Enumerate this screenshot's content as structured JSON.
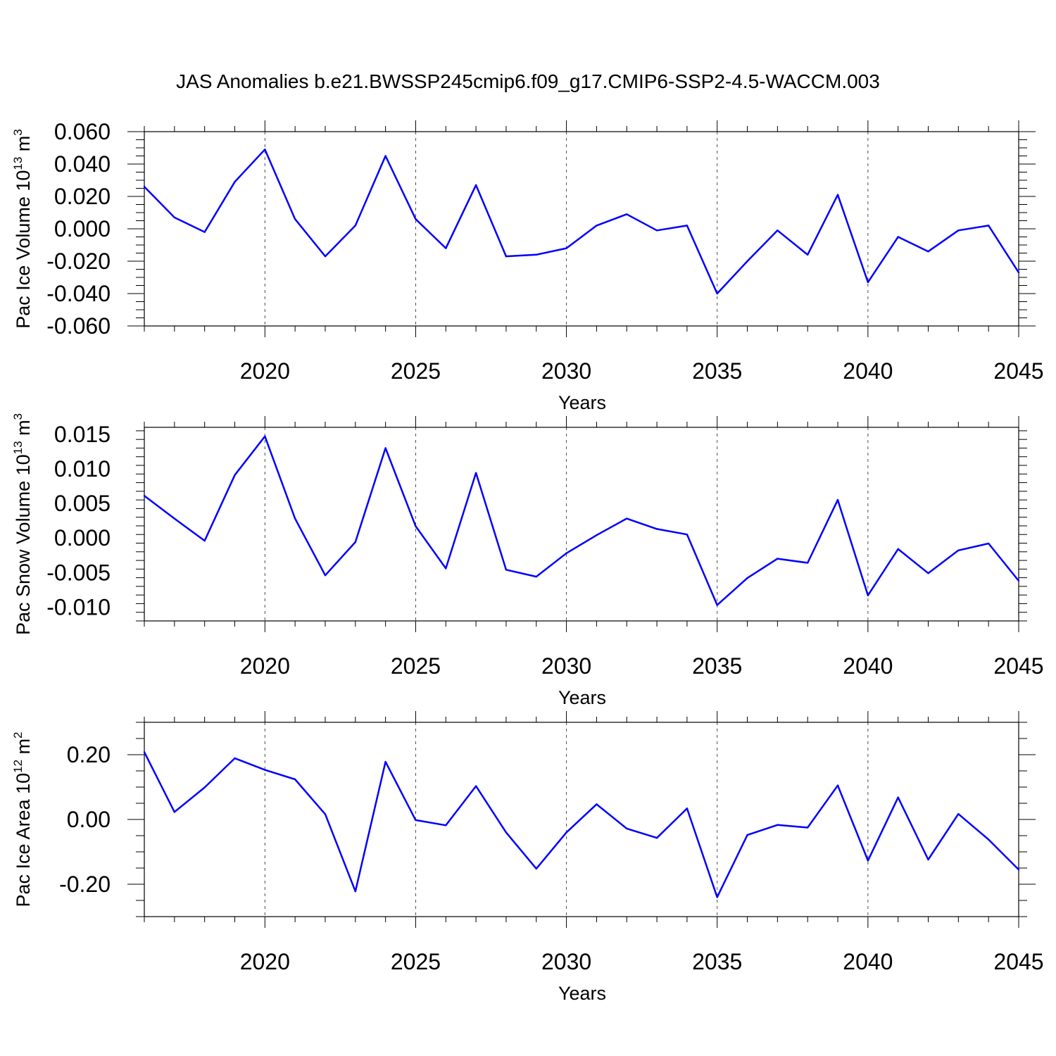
{
  "chart_title": "JAS Anomalies b.e21.BWSSP245cmip6.f09_g17.CMIP6-SSP2-4.5-WACCM.003",
  "colors": {
    "line": "#0000ff",
    "axis": "#000000",
    "grid": "#000000"
  },
  "chart_data": [
    {
      "type": "line",
      "ylabel": {
        "text": "Pac Ice Volume 10",
        "sup": "13",
        "unit": " m",
        "unit_sup": "3"
      },
      "xlabel": "Years",
      "xlim": [
        2016,
        2045
      ],
      "ylim": [
        -0.06,
        0.06
      ],
      "yticks": [
        -0.06,
        -0.04,
        -0.02,
        0.0,
        0.02,
        0.04,
        0.06
      ],
      "ytick_labels": [
        "-0.060",
        "-0.040",
        "-0.020",
        "0.000",
        "0.020",
        "0.040",
        "0.060"
      ],
      "xticks": [
        2020,
        2025,
        2030,
        2035,
        2040,
        2045
      ],
      "xtick_labels": [
        "2020",
        "2025",
        "2030",
        "2035",
        "2040",
        "2045"
      ],
      "grid": "vertical dashed at labeled years",
      "x": [
        2016,
        2017,
        2018,
        2019,
        2020,
        2021,
        2022,
        2023,
        2024,
        2025,
        2026,
        2027,
        2028,
        2029,
        2030,
        2031,
        2032,
        2033,
        2034,
        2035,
        2036,
        2037,
        2038,
        2039,
        2040,
        2041,
        2042,
        2043,
        2044,
        2045
      ],
      "values": [
        0.026,
        0.007,
        -0.002,
        0.029,
        0.049,
        0.006,
        -0.017,
        0.002,
        0.045,
        0.006,
        -0.012,
        0.027,
        -0.017,
        -0.016,
        -0.012,
        0.002,
        0.009,
        -0.001,
        0.002,
        -0.04,
        -0.02,
        -0.001,
        -0.016,
        0.021,
        -0.033,
        -0.005,
        -0.014,
        -0.001,
        0.002,
        -0.027
      ]
    },
    {
      "type": "line",
      "ylabel": {
        "text": "Pac Snow Volume 10",
        "sup": "13",
        "unit": " m",
        "unit_sup": "3"
      },
      "xlabel": "Years",
      "xlim": [
        2016,
        2045
      ],
      "ylim": [
        -0.012,
        0.016
      ],
      "yticks": [
        -0.01,
        -0.005,
        0.0,
        0.005,
        0.01,
        0.015
      ],
      "ytick_labels": [
        "-0.010",
        "-0.005",
        "0.000",
        "0.005",
        "0.010",
        "0.015"
      ],
      "xticks": [
        2020,
        2025,
        2030,
        2035,
        2040,
        2045
      ],
      "xtick_labels": [
        "2020",
        "2025",
        "2030",
        "2035",
        "2040",
        "2045"
      ],
      "grid": "vertical dashed at labeled years",
      "x": [
        2016,
        2017,
        2018,
        2019,
        2020,
        2021,
        2022,
        2023,
        2024,
        2025,
        2026,
        2027,
        2028,
        2029,
        2030,
        2031,
        2032,
        2033,
        2034,
        2035,
        2036,
        2037,
        2038,
        2039,
        2040,
        2041,
        2042,
        2043,
        2044,
        2045
      ],
      "values": [
        0.0061,
        0.0028,
        -0.0004,
        0.0091,
        0.0147,
        0.0028,
        -0.0054,
        -0.0006,
        0.013,
        0.0017,
        -0.0044,
        0.0094,
        -0.0046,
        -0.0056,
        -0.0022,
        0.0004,
        0.0028,
        0.0013,
        0.0005,
        -0.0097,
        -0.0058,
        -0.003,
        -0.0036,
        0.0055,
        -0.0083,
        -0.0016,
        -0.0051,
        -0.0018,
        -0.0008,
        -0.0062
      ]
    },
    {
      "type": "line",
      "ylabel": {
        "text": "Pac Ice Area 10",
        "sup": "12",
        "unit": " m",
        "unit_sup": "2"
      },
      "xlabel": "Years",
      "xlim": [
        2016,
        2045
      ],
      "ylim": [
        -0.3,
        0.3
      ],
      "yticks": [
        -0.2,
        0.0,
        0.2
      ],
      "ytick_labels": [
        "-0.20",
        "0.00",
        "0.20"
      ],
      "xticks": [
        2020,
        2025,
        2030,
        2035,
        2040,
        2045
      ],
      "xtick_labels": [
        "2020",
        "2025",
        "2030",
        "2035",
        "2040",
        "2045"
      ],
      "grid": "vertical dashed at labeled years",
      "x": [
        2016,
        2017,
        2018,
        2019,
        2020,
        2021,
        2022,
        2023,
        2024,
        2025,
        2026,
        2027,
        2028,
        2029,
        2030,
        2031,
        2032,
        2033,
        2034,
        2035,
        2036,
        2037,
        2038,
        2039,
        2040,
        2041,
        2042,
        2043,
        2044,
        2045
      ],
      "values": [
        0.208,
        0.023,
        0.099,
        0.189,
        0.153,
        0.124,
        0.016,
        -0.222,
        0.178,
        -0.002,
        -0.018,
        0.103,
        -0.04,
        -0.152,
        -0.04,
        0.047,
        -0.028,
        -0.057,
        0.034,
        -0.24,
        -0.048,
        -0.017,
        -0.025,
        0.105,
        -0.127,
        0.068,
        -0.124,
        0.017,
        -0.062,
        -0.155
      ]
    }
  ]
}
